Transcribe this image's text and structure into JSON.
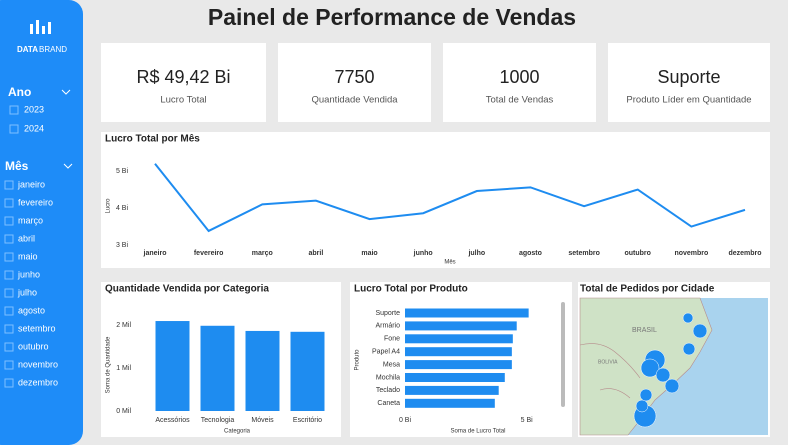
{
  "header": {
    "title": "Painel de Performance de Vendas"
  },
  "sidebar": {
    "logo": [
      "DATA",
      "BRAND"
    ],
    "year_title": "Ano",
    "years": [
      "2023",
      "2024"
    ],
    "month_title": "Mês",
    "months": [
      "janeiro",
      "fevereiro",
      "março",
      "abril",
      "maio",
      "junho",
      "julho",
      "agosto",
      "setembro",
      "outubro",
      "novembro",
      "dezembro"
    ]
  },
  "cards": [
    {
      "value": "R$ 49,42 Bi",
      "label": "Lucro Total"
    },
    {
      "value": "7750",
      "label": "Quantidade Vendida"
    },
    {
      "value": "1000",
      "label": "Total de Vendas"
    },
    {
      "value": "Suporte",
      "label": "Produto Líder em Quantidade"
    }
  ],
  "chart_data": [
    {
      "type": "line",
      "title": "Lucro Total por Mês",
      "x_label": "Mês",
      "y_label": "Lucro",
      "categories": [
        "janeiro",
        "fevereiro",
        "março",
        "abril",
        "maio",
        "junho",
        "julho",
        "agosto",
        "setembro",
        "outubro",
        "novembro",
        "dezembro"
      ],
      "values": [
        5.2,
        3.38,
        4.1,
        4.2,
        3.7,
        3.86,
        4.46,
        4.56,
        4.05,
        4.5,
        3.5,
        3.95
      ],
      "color": "#1e8cf0",
      "ylim": [
        3,
        5.3
      ],
      "yticks": [
        {
          "value": 3,
          "label": "3 Bi"
        },
        {
          "value": 4,
          "label": "4 Bi"
        },
        {
          "value": 5,
          "label": "5 Bi"
        }
      ]
    },
    {
      "type": "bar",
      "title": "Quantidade Vendida por Categoria",
      "x_label": "Categoria",
      "y_label": "Soma de Quantidade",
      "categories": [
        "Acessórios",
        "Tecnologia",
        "Móveis",
        "Escritório"
      ],
      "values": [
        2.09,
        1.98,
        1.86,
        1.84
      ],
      "color": "#1e8cf0",
      "ylim": [
        0,
        2.3
      ],
      "yticks": [
        {
          "value": 0,
          "label": "0 Mil"
        },
        {
          "value": 1,
          "label": "1 Mil"
        },
        {
          "value": 2,
          "label": "2 Mil"
        }
      ]
    },
    {
      "type": "barh",
      "title": "Lucro Total por Produto",
      "x_label": "Soma de Lucro Total",
      "y_label": "Produto",
      "categories": [
        "Suporte",
        "Armário",
        "Fone",
        "Papel A4",
        "Mesa",
        "Mochila",
        "Teclado",
        "Caneta"
      ],
      "values": [
        5.08,
        4.59,
        4.43,
        4.39,
        4.39,
        4.1,
        3.85,
        3.69
      ],
      "color": "#1e8cf0",
      "xlim": [
        0,
        5.3
      ],
      "xticks": [
        {
          "value": 0,
          "label": "0 Bi"
        },
        {
          "value": 5,
          "label": "5 Bi"
        }
      ]
    },
    {
      "type": "map",
      "title": "Total de Pedidos por Cidade",
      "labels": [
        "BRASIL",
        "BOLIVIA"
      ]
    }
  ]
}
